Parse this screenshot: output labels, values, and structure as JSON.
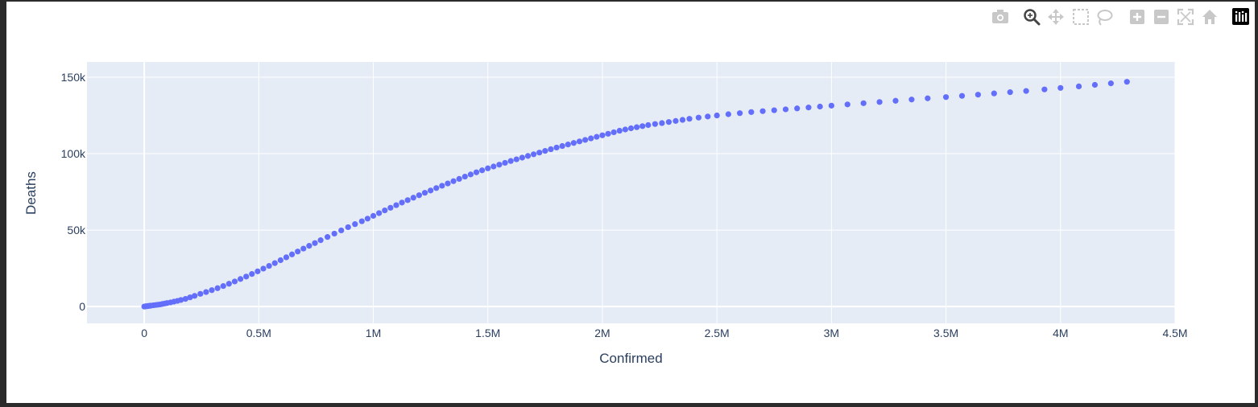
{
  "modebar": {
    "buttons": [
      {
        "name": "camera-icon",
        "color": "#c8c8c8"
      },
      {
        "name": "zoom-icon",
        "color": "#444444"
      },
      {
        "name": "pan-icon",
        "color": "#c8c8c8"
      },
      {
        "name": "box-select-icon",
        "color": "#c8c8c8"
      },
      {
        "name": "lasso-select-icon",
        "color": "#c8c8c8"
      },
      {
        "name": "zoom-in-icon",
        "color": "#c8c8c8"
      },
      {
        "name": "zoom-out-icon",
        "color": "#c8c8c8"
      },
      {
        "name": "autoscale-icon",
        "color": "#c8c8c8"
      },
      {
        "name": "reset-axes-icon",
        "color": "#c8c8c8"
      },
      {
        "name": "plotly-logo-icon",
        "color": "#000000"
      }
    ]
  },
  "chart_data": {
    "type": "scatter",
    "title": "",
    "xlabel": "Confirmed",
    "ylabel": "Deaths",
    "xlim": [
      -250000,
      4500000
    ],
    "ylim": [
      -11000,
      160000
    ],
    "xticks": [
      0,
      500000,
      1000000,
      1500000,
      2000000,
      2500000,
      3000000,
      3500000,
      4000000,
      4500000
    ],
    "xtick_labels": [
      "0",
      "0.5M",
      "1M",
      "1.5M",
      "2M",
      "2.5M",
      "3M",
      "3.5M",
      "4M",
      "4.5M"
    ],
    "yticks": [
      0,
      50000,
      100000,
      150000
    ],
    "ytick_labels": [
      "0",
      "50k",
      "100k",
      "150k"
    ],
    "grid": true,
    "colors": {
      "marker": "#636efa",
      "plot_bg": "#e5ecf6",
      "grid": "#ffffff",
      "text": "#2a3f5f"
    },
    "points": [
      [
        0,
        0
      ],
      [
        5000,
        100
      ],
      [
        10000,
        200
      ],
      [
        15000,
        300
      ],
      [
        20000,
        400
      ],
      [
        25000,
        500
      ],
      [
        30000,
        600
      ],
      [
        40000,
        800
      ],
      [
        50000,
        1000
      ],
      [
        60000,
        1200
      ],
      [
        70000,
        1400
      ],
      [
        80000,
        1700
      ],
      [
        90000,
        2000
      ],
      [
        100000,
        2300
      ],
      [
        115000,
        2700
      ],
      [
        130000,
        3200
      ],
      [
        145000,
        3700
      ],
      [
        160000,
        4300
      ],
      [
        180000,
        5000
      ],
      [
        200000,
        6000
      ],
      [
        220000,
        7000
      ],
      [
        245000,
        8300
      ],
      [
        270000,
        9500
      ],
      [
        295000,
        10700
      ],
      [
        320000,
        12000
      ],
      [
        345000,
        13400
      ],
      [
        370000,
        14900
      ],
      [
        395000,
        16400
      ],
      [
        420000,
        18000
      ],
      [
        445000,
        19600
      ],
      [
        470000,
        21300
      ],
      [
        495000,
        23000
      ],
      [
        520000,
        24800
      ],
      [
        545000,
        26600
      ],
      [
        570000,
        28400
      ],
      [
        595000,
        30300
      ],
      [
        620000,
        32200
      ],
      [
        645000,
        34100
      ],
      [
        670000,
        36000
      ],
      [
        695000,
        37900
      ],
      [
        720000,
        39700
      ],
      [
        745000,
        41500
      ],
      [
        770000,
        43400
      ],
      [
        800000,
        45500
      ],
      [
        830000,
        47700
      ],
      [
        860000,
        49800
      ],
      [
        890000,
        51900
      ],
      [
        920000,
        53900
      ],
      [
        950000,
        55800
      ],
      [
        975000,
        57500
      ],
      [
        1000000,
        59300
      ],
      [
        1025000,
        61100
      ],
      [
        1050000,
        62900
      ],
      [
        1075000,
        64600
      ],
      [
        1100000,
        66300
      ],
      [
        1125000,
        68000
      ],
      [
        1150000,
        69600
      ],
      [
        1175000,
        71200
      ],
      [
        1200000,
        72800
      ],
      [
        1225000,
        74400
      ],
      [
        1250000,
        75900
      ],
      [
        1275000,
        77500
      ],
      [
        1300000,
        79000
      ],
      [
        1325000,
        80500
      ],
      [
        1350000,
        82000
      ],
      [
        1375000,
        83500
      ],
      [
        1400000,
        85000
      ],
      [
        1425000,
        86400
      ],
      [
        1450000,
        87800
      ],
      [
        1475000,
        89100
      ],
      [
        1500000,
        90400
      ],
      [
        1525000,
        91600
      ],
      [
        1550000,
        92800
      ],
      [
        1575000,
        94000
      ],
      [
        1600000,
        95200
      ],
      [
        1625000,
        96300
      ],
      [
        1650000,
        97400
      ],
      [
        1675000,
        98500
      ],
      [
        1700000,
        99600
      ],
      [
        1725000,
        100700
      ],
      [
        1750000,
        101800
      ],
      [
        1775000,
        102900
      ],
      [
        1800000,
        104000
      ],
      [
        1825000,
        105000
      ],
      [
        1850000,
        106000
      ],
      [
        1875000,
        107000
      ],
      [
        1900000,
        108000
      ],
      [
        1925000,
        109000
      ],
      [
        1950000,
        110000
      ],
      [
        1975000,
        111000
      ],
      [
        2000000,
        112000
      ],
      [
        2025000,
        113000
      ],
      [
        2050000,
        114000
      ],
      [
        2075000,
        115000
      ],
      [
        2100000,
        115800
      ],
      [
        2125000,
        116600
      ],
      [
        2150000,
        117300
      ],
      [
        2175000,
        118000
      ],
      [
        2200000,
        118700
      ],
      [
        2230000,
        119400
      ],
      [
        2260000,
        120000
      ],
      [
        2290000,
        120700
      ],
      [
        2320000,
        121400
      ],
      [
        2350000,
        122100
      ],
      [
        2380000,
        122800
      ],
      [
        2420000,
        123600
      ],
      [
        2460000,
        124300
      ],
      [
        2500000,
        125000
      ],
      [
        2550000,
        125800
      ],
      [
        2600000,
        126500
      ],
      [
        2650000,
        127200
      ],
      [
        2700000,
        127800
      ],
      [
        2750000,
        128400
      ],
      [
        2800000,
        129000
      ],
      [
        2850000,
        129600
      ],
      [
        2900000,
        130200
      ],
      [
        2950000,
        130800
      ],
      [
        3000000,
        131400
      ],
      [
        3070000,
        132200
      ],
      [
        3140000,
        133000
      ],
      [
        3210000,
        133800
      ],
      [
        3280000,
        134600
      ],
      [
        3350000,
        135400
      ],
      [
        3420000,
        136200
      ],
      [
        3500000,
        137000
      ],
      [
        3570000,
        137800
      ],
      [
        3640000,
        138600
      ],
      [
        3710000,
        139400
      ],
      [
        3780000,
        140200
      ],
      [
        3850000,
        141000
      ],
      [
        3930000,
        142000
      ],
      [
        4000000,
        143000
      ],
      [
        4080000,
        144000
      ],
      [
        4150000,
        145000
      ],
      [
        4220000,
        146000
      ],
      [
        4290000,
        147000
      ]
    ]
  }
}
